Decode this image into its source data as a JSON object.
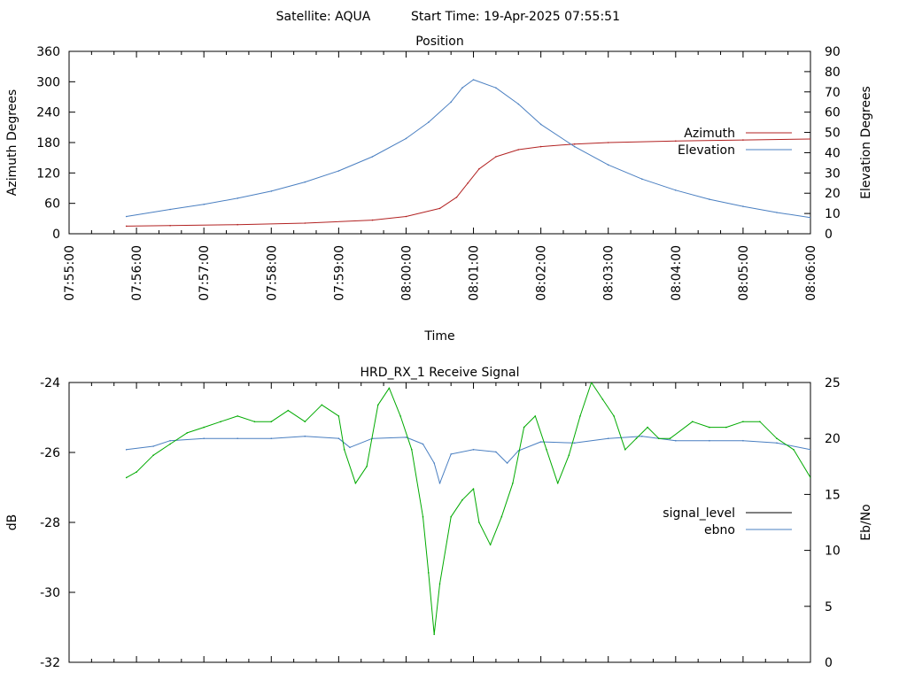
{
  "header": {
    "satellite": "Satellite: AQUA",
    "start_time": "Start Time: 19-Apr-2025 07:55:51"
  },
  "chart_data": [
    {
      "type": "line",
      "title": "Position",
      "xlabel": "Time",
      "ylabel": "Azimuth Degrees",
      "y2label": "Elevation Degrees",
      "xlim": [
        "07:55:00",
        "08:06:00"
      ],
      "ylim": [
        0,
        360
      ],
      "y2lim": [
        0,
        90
      ],
      "x_ticks": [
        "07:55:00",
        "07:56:00",
        "07:57:00",
        "07:58:00",
        "07:59:00",
        "08:00:00",
        "08:01:00",
        "08:02:00",
        "08:03:00",
        "08:04:00",
        "08:05:00",
        "08:06:00"
      ],
      "y_ticks": [
        "0",
        "60",
        "120",
        "180",
        "240",
        "300",
        "360"
      ],
      "y2_ticks": [
        "0",
        "10",
        "20",
        "30",
        "40",
        "50",
        "60",
        "70",
        "80",
        "90"
      ],
      "legend_position": "right",
      "series": [
        {
          "name": "Azimuth",
          "axis": "left",
          "color": "#b22222",
          "x": [
            "07:55:51",
            "07:56:30",
            "07:57:30",
            "07:58:30",
            "07:59:30",
            "08:00:00",
            "08:00:30",
            "08:00:45",
            "08:00:55",
            "08:01:05",
            "08:01:20",
            "08:01:40",
            "08:02:00",
            "08:02:30",
            "08:03:00",
            "08:04:00",
            "08:05:00",
            "08:06:00"
          ],
          "values": [
            15,
            16,
            18,
            21,
            27,
            34,
            50,
            72,
            100,
            128,
            152,
            166,
            172,
            177,
            180,
            183,
            185,
            187
          ]
        },
        {
          "name": "Elevation",
          "axis": "right",
          "color": "#4a7fc1",
          "x": [
            "07:55:51",
            "07:56:30",
            "07:57:00",
            "07:57:30",
            "07:58:00",
            "07:58:30",
            "07:59:00",
            "07:59:30",
            "08:00:00",
            "08:00:20",
            "08:00:40",
            "08:00:50",
            "08:01:00",
            "08:01:20",
            "08:01:40",
            "08:02:00",
            "08:02:30",
            "08:03:00",
            "08:03:30",
            "08:04:00",
            "08:04:30",
            "08:05:00",
            "08:05:30",
            "08:06:00"
          ],
          "values": [
            8.5,
            12,
            14.5,
            17.5,
            21,
            25.5,
            31,
            38,
            47,
            55,
            65,
            72,
            76,
            72,
            64,
            54,
            43,
            34,
            27,
            21.5,
            17,
            13.5,
            10.5,
            8
          ]
        }
      ]
    },
    {
      "type": "line",
      "title": "HRD_RX_1 Receive Signal",
      "xlabel": "",
      "ylabel": "dB",
      "y2label": "Eb/No",
      "xlim": [
        "07:55:00",
        "08:06:00"
      ],
      "ylim": [
        -32,
        -24
      ],
      "y2lim": [
        0,
        25
      ],
      "y_ticks": [
        "-24",
        "-26",
        "-28",
        "-30",
        "-32"
      ],
      "y2_ticks": [
        "25",
        "20",
        "15",
        "10",
        "5",
        "0"
      ],
      "legend_position": "right",
      "series": [
        {
          "name": "signal_level",
          "axis": "left",
          "color": "#000000",
          "legend_only": true,
          "x": [],
          "values": []
        },
        {
          "name": "ebno",
          "axis": "right",
          "color": "#4a7fc1",
          "x": [
            "07:55:51",
            "07:56:15",
            "07:56:30",
            "07:57:00",
            "07:57:30",
            "07:58:00",
            "07:58:30",
            "07:59:00",
            "07:59:10",
            "07:59:30",
            "08:00:00",
            "08:00:15",
            "08:00:25",
            "08:00:30",
            "08:00:40",
            "08:01:00",
            "08:01:20",
            "08:01:30",
            "08:01:40",
            "08:02:00",
            "08:02:30",
            "08:03:00",
            "08:03:30",
            "08:04:00",
            "08:04:30",
            "08:05:00",
            "08:05:30",
            "08:06:00"
          ],
          "values": [
            19,
            19.3,
            19.8,
            20,
            20,
            20,
            20.2,
            20,
            19.2,
            20,
            20.1,
            19.5,
            17.8,
            16,
            18.6,
            19,
            18.8,
            17.8,
            18.9,
            19.7,
            19.6,
            20,
            20.2,
            19.8,
            19.8,
            19.8,
            19.6,
            19
          ]
        },
        {
          "name": "",
          "axis": "right",
          "color": "#00aa00",
          "x": [
            "07:55:51",
            "07:56:00",
            "07:56:15",
            "07:56:30",
            "07:56:45",
            "07:57:00",
            "07:57:15",
            "07:57:30",
            "07:57:45",
            "07:58:00",
            "07:58:15",
            "07:58:30",
            "07:58:45",
            "07:59:00",
            "07:59:05",
            "07:59:15",
            "07:59:25",
            "07:59:35",
            "07:59:45",
            "07:59:55",
            "08:00:05",
            "08:00:15",
            "08:00:20",
            "08:00:25",
            "08:00:30",
            "08:00:40",
            "08:00:50",
            "08:01:00",
            "08:01:05",
            "08:01:15",
            "08:01:25",
            "08:01:35",
            "08:01:45",
            "08:01:55",
            "08:02:05",
            "08:02:15",
            "08:02:25",
            "08:02:35",
            "08:02:45",
            "08:02:55",
            "08:03:05",
            "08:03:15",
            "08:03:25",
            "08:03:35",
            "08:03:45",
            "08:03:55",
            "08:04:15",
            "08:04:30",
            "08:04:45",
            "08:05:00",
            "08:05:15",
            "08:05:30",
            "08:05:45",
            "08:06:00"
          ],
          "values": [
            16.5,
            17,
            18.5,
            19.5,
            20.5,
            21,
            21.5,
            22,
            21.5,
            21.5,
            22.5,
            21.5,
            23,
            22,
            19,
            16,
            17.5,
            23,
            24.5,
            22,
            19,
            13,
            8,
            2.5,
            7,
            13,
            14.5,
            15.5,
            12.5,
            10.5,
            13,
            16,
            21,
            22,
            19,
            16,
            18.5,
            22,
            25,
            23.5,
            22,
            19,
            20,
            21,
            20,
            20,
            21.5,
            21,
            21,
            21.5,
            21.5,
            20,
            19,
            16.5
          ]
        }
      ]
    }
  ]
}
